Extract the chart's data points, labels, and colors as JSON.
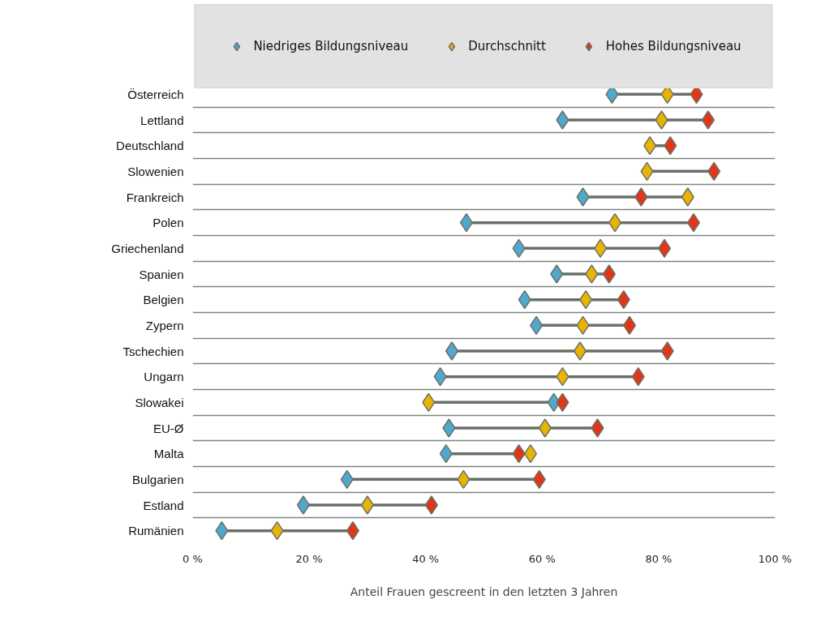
{
  "chart_data": {
    "type": "scatter",
    "orientation": "horizontal",
    "marker": "diamond",
    "grid": "y",
    "legend": "top",
    "xlabel": "Anteil Frauen gescreent in den letzten 3 Jahren",
    "categories": [
      "Österreich",
      "Lettland",
      "Deutschland",
      "Slowenien",
      "Frankreich",
      "Polen",
      "Griechenland",
      "Spanien",
      "Belgien",
      "Zypern",
      "Tschechien",
      "Ungarn",
      "Slowakei",
      "EU-Ø",
      "Malta",
      "Bulgarien",
      "Estland",
      "Rumänien"
    ],
    "xlim": [
      0,
      100
    ],
    "xticks": [
      {
        "value": 0,
        "label": "0 %"
      },
      {
        "value": 20,
        "label": "20 %"
      },
      {
        "value": 40,
        "label": "40 %"
      },
      {
        "value": 60,
        "label": "60 %"
      },
      {
        "value": 80,
        "label": "80 %"
      },
      {
        "value": 100,
        "label": "100 %"
      }
    ],
    "series": [
      {
        "name": "Niedriges Bildungsniveau",
        "color": "#4fa9cc",
        "values": [
          72,
          63.5,
          null,
          null,
          67,
          47,
          56,
          62.5,
          57,
          59,
          44.5,
          42.5,
          62,
          44,
          43.5,
          26.5,
          19,
          5
        ]
      },
      {
        "name": "Durchschnitt",
        "color": "#e8b400",
        "values": [
          81.5,
          80.5,
          78.5,
          78,
          85,
          72.5,
          70,
          68.5,
          67.5,
          67,
          66.5,
          63.5,
          40.5,
          60.5,
          58,
          46.5,
          30,
          14.5
        ]
      },
      {
        "name": "Hohes Bildungsniveau",
        "color": "#e23618",
        "values": [
          86.5,
          88.5,
          82,
          89.5,
          77,
          86,
          81,
          71.5,
          74,
          75,
          81.5,
          76.5,
          63.5,
          69.5,
          56,
          59.5,
          41,
          27.5
        ]
      }
    ]
  }
}
